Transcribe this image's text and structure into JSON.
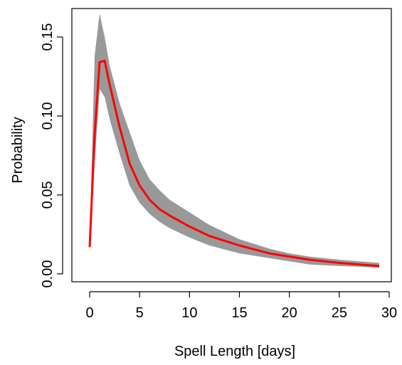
{
  "chart_data": {
    "type": "area",
    "title": "",
    "xlabel": "Spell Length [days]",
    "ylabel": "Probability",
    "xlim": [
      0,
      30
    ],
    "ylim": [
      0,
      0.165
    ],
    "grid": false,
    "x_ticks": [
      "0",
      "5",
      "10",
      "15",
      "20",
      "25",
      "30"
    ],
    "y_ticks": [
      "0.00",
      "0.05",
      "0.10",
      "0.15"
    ],
    "band_color": "#999999",
    "line_color": "#ff0000",
    "x": [
      0,
      0.5,
      1,
      1.5,
      2,
      3,
      4,
      5,
      6,
      7,
      8,
      10,
      12,
      15,
      18,
      20,
      22,
      25,
      29
    ],
    "series": [
      {
        "values": [
          0.017,
          0.088,
          0.134,
          0.135,
          0.12,
          0.093,
          0.07,
          0.056,
          0.047,
          0.041,
          0.037,
          0.03,
          0.024,
          0.018,
          0.013,
          0.011,
          0.009,
          0.007,
          0.005
        ]
      }
    ],
    "band_upper": [
      0.02,
      0.138,
      0.165,
      0.15,
      0.132,
      0.108,
      0.09,
      0.072,
      0.06,
      0.053,
      0.047,
      0.039,
      0.031,
      0.022,
      0.016,
      0.013,
      0.011,
      0.009,
      0.007
    ],
    "band_lower": [
      0.014,
      0.07,
      0.117,
      0.112,
      0.098,
      0.076,
      0.056,
      0.045,
      0.038,
      0.033,
      0.029,
      0.023,
      0.018,
      0.013,
      0.01,
      0.008,
      0.006,
      0.005,
      0.004
    ]
  }
}
